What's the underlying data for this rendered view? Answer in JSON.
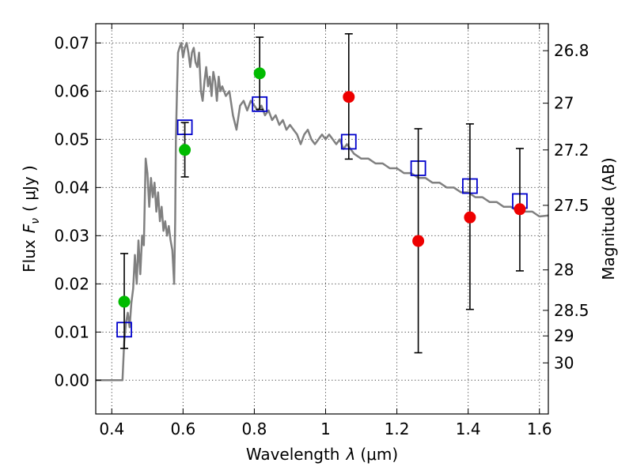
{
  "chart_data": {
    "type": "scatter",
    "xlabel_prefix": "Wavelength",
    "xlabel_symbol": "λ",
    "xlabel_unit": "(μm)",
    "ylabel_prefix": "Flux",
    "ylabel_symbol": "F",
    "ylabel_sub": "ν",
    "ylabel_unit": "( μJy )",
    "y2label": "Magnitude (AB)",
    "xlim": [
      0.355,
      1.625
    ],
    "ylim": [
      -0.007,
      0.074
    ],
    "grid": true,
    "xticks": [
      0.4,
      0.6,
      0.8,
      1.0,
      1.2,
      1.4,
      1.6
    ],
    "xtick_labels": [
      "0.4",
      "0.6",
      "0.8",
      "1",
      "1.2",
      "1.4",
      "1.6"
    ],
    "yticks": [
      0.0,
      0.01,
      0.02,
      0.03,
      0.04,
      0.05,
      0.06,
      0.07
    ],
    "ytick_labels": [
      "0.00",
      "0.01",
      "0.02",
      "0.03",
      "0.04",
      "0.05",
      "0.06",
      "0.07"
    ],
    "y2ticks": [
      {
        "label": "26.8",
        "flux": 0.0684
      },
      {
        "label": "27",
        "flux": 0.0575
      },
      {
        "label": "27.2",
        "flux": 0.0478
      },
      {
        "label": "27.5",
        "flux": 0.0363
      },
      {
        "label": "28",
        "flux": 0.0229
      },
      {
        "label": "28.5",
        "flux": 0.0145
      },
      {
        "label": "29",
        "flux": 0.0092
      },
      {
        "label": "30",
        "flux": 0.0036
      }
    ],
    "series": [
      {
        "kind": "model_sed",
        "color": "#808080",
        "x": [
          0.355,
          0.43,
          0.435,
          0.44,
          0.445,
          0.45,
          0.455,
          0.46,
          0.465,
          0.47,
          0.475,
          0.48,
          0.485,
          0.49,
          0.495,
          0.5,
          0.505,
          0.51,
          0.515,
          0.52,
          0.525,
          0.53,
          0.535,
          0.54,
          0.545,
          0.55,
          0.555,
          0.56,
          0.565,
          0.57,
          0.575,
          0.578,
          0.58,
          0.583,
          0.586,
          0.59,
          0.595,
          0.6,
          0.605,
          0.61,
          0.615,
          0.62,
          0.625,
          0.63,
          0.635,
          0.64,
          0.645,
          0.65,
          0.655,
          0.66,
          0.665,
          0.67,
          0.675,
          0.68,
          0.685,
          0.69,
          0.695,
          0.7,
          0.705,
          0.71,
          0.72,
          0.73,
          0.74,
          0.75,
          0.76,
          0.77,
          0.78,
          0.79,
          0.8,
          0.81,
          0.82,
          0.83,
          0.84,
          0.85,
          0.86,
          0.87,
          0.88,
          0.89,
          0.9,
          0.91,
          0.92,
          0.93,
          0.94,
          0.95,
          0.96,
          0.97,
          0.98,
          0.99,
          1.0,
          1.01,
          1.02,
          1.03,
          1.04,
          1.05,
          1.06,
          1.08,
          1.1,
          1.12,
          1.14,
          1.16,
          1.18,
          1.2,
          1.22,
          1.24,
          1.26,
          1.28,
          1.3,
          1.32,
          1.34,
          1.36,
          1.38,
          1.4,
          1.42,
          1.44,
          1.46,
          1.48,
          1.5,
          1.52,
          1.54,
          1.56,
          1.58,
          1.6,
          1.625
        ],
        "y": [
          0.0,
          0.0,
          0.008,
          0.012,
          0.014,
          0.011,
          0.016,
          0.019,
          0.026,
          0.02,
          0.029,
          0.022,
          0.03,
          0.028,
          0.046,
          0.043,
          0.036,
          0.042,
          0.038,
          0.041,
          0.035,
          0.039,
          0.033,
          0.036,
          0.031,
          0.033,
          0.03,
          0.032,
          0.029,
          0.027,
          0.02,
          0.033,
          0.05,
          0.06,
          0.068,
          0.069,
          0.07,
          0.067,
          0.069,
          0.07,
          0.068,
          0.065,
          0.068,
          0.069,
          0.066,
          0.065,
          0.068,
          0.06,
          0.058,
          0.062,
          0.065,
          0.061,
          0.063,
          0.059,
          0.064,
          0.062,
          0.058,
          0.063,
          0.06,
          0.061,
          0.059,
          0.06,
          0.055,
          0.052,
          0.057,
          0.058,
          0.056,
          0.058,
          0.057,
          0.056,
          0.057,
          0.055,
          0.056,
          0.054,
          0.055,
          0.053,
          0.054,
          0.052,
          0.053,
          0.052,
          0.051,
          0.049,
          0.051,
          0.052,
          0.05,
          0.049,
          0.05,
          0.051,
          0.05,
          0.051,
          0.05,
          0.049,
          0.05,
          0.048,
          0.049,
          0.047,
          0.046,
          0.046,
          0.045,
          0.045,
          0.044,
          0.044,
          0.043,
          0.043,
          0.042,
          0.042,
          0.041,
          0.041,
          0.04,
          0.04,
          0.039,
          0.039,
          0.038,
          0.038,
          0.037,
          0.037,
          0.036,
          0.036,
          0.035,
          0.035,
          0.035,
          0.034,
          0.0342
        ]
      },
      {
        "kind": "model_bandpass",
        "marker": "open-square",
        "color": "#0000cc",
        "x": [
          0.435,
          0.605,
          0.815,
          1.065,
          1.26,
          1.405,
          1.545
        ],
        "y": [
          0.0105,
          0.0525,
          0.0573,
          0.0495,
          0.044,
          0.0403,
          0.0372
        ]
      },
      {
        "kind": "observed",
        "marker": "filled-circle",
        "color": "#00bb00",
        "x": [
          0.435,
          0.605,
          0.815
        ],
        "y": [
          0.0163,
          0.0478,
          0.0637
        ],
        "err_low": [
          0.0066,
          0.0422,
          0.0562
        ],
        "err_high": [
          0.0263,
          0.0535,
          0.0712
        ]
      },
      {
        "kind": "observed",
        "marker": "filled-circle",
        "color": "#ee0000",
        "x": [
          1.065,
          1.26,
          1.405,
          1.545
        ],
        "y": [
          0.0588,
          0.0289,
          0.0338,
          0.0355
        ],
        "err_low": [
          0.0459,
          0.0057,
          0.0147,
          0.0227
        ],
        "err_high": [
          0.0719,
          0.0522,
          0.0532,
          0.0481
        ]
      }
    ]
  }
}
